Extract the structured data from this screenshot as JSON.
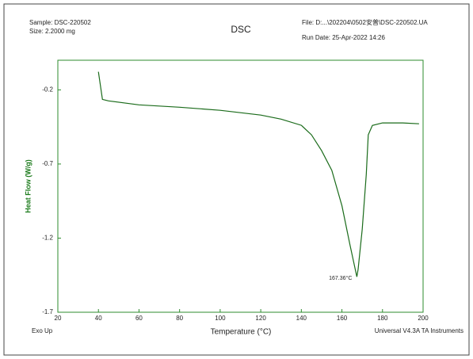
{
  "chart_data": {
    "type": "line",
    "title": "DSC",
    "header": {
      "sample": "Sample: DSC-220502",
      "size": "Size:  2.2000 mg",
      "file": "File: D:...\\202204\\0502安普\\DSC-220502.UA",
      "run_date": "Run Date: 25-Apr-2022 14:26"
    },
    "footer": {
      "left": "Exo Up",
      "right": "Universal V4.3A TA Instruments"
    },
    "x_label": "Temperature (°C)",
    "y_label": "Heat Flow (W/g)",
    "xlim": [
      20,
      200
    ],
    "xticks": [
      20,
      40,
      60,
      80,
      100,
      120,
      140,
      160,
      180,
      200
    ],
    "ylim": [
      -1.7,
      0.0
    ],
    "yticks": [
      -0.2,
      -0.7,
      -1.2,
      -1.7
    ],
    "grid": false,
    "color": "#1a6b1a",
    "x": [
      40,
      42,
      45,
      60,
      80,
      100,
      120,
      130,
      140,
      145,
      150,
      155,
      160,
      164,
      167.36,
      168,
      170,
      172,
      173,
      175,
      180,
      190,
      198
    ],
    "values": [
      -0.078,
      -0.264,
      -0.274,
      -0.301,
      -0.317,
      -0.338,
      -0.37,
      -0.397,
      -0.439,
      -0.503,
      -0.61,
      -0.743,
      -0.982,
      -1.248,
      -1.461,
      -1.41,
      -1.14,
      -0.77,
      -0.503,
      -0.44,
      -0.423,
      -0.423,
      -0.429
    ],
    "annotation": {
      "text": "167.36°C",
      "x": 167.36,
      "y": -1.461
    }
  }
}
